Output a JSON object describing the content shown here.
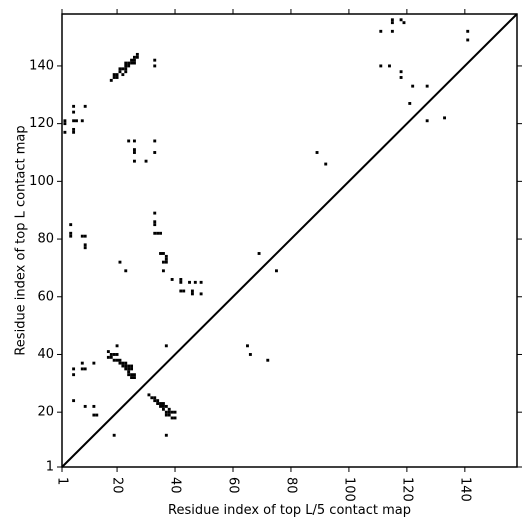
{
  "chart_data": {
    "type": "scatter",
    "xlabel": "Residue index of top L/5 contact map",
    "ylabel": "Residue index of top L contact map",
    "xlim": [
      1,
      158
    ],
    "ylim": [
      1,
      158
    ],
    "x_ticks": [
      1,
      20,
      40,
      60,
      80,
      100,
      120,
      140
    ],
    "y_ticks": [
      1,
      20,
      40,
      60,
      80,
      100,
      120,
      140
    ],
    "x_tick_labels": [
      "1",
      "20",
      "40",
      "60",
      "80",
      "100",
      "120",
      "140"
    ],
    "y_tick_labels": [
      "1",
      "20",
      "40",
      "60",
      "80",
      "100",
      "120",
      "140"
    ],
    "diagonal": true,
    "grid": false,
    "marker_color": "#000000",
    "series": [
      {
        "values_xy": [
          [
            2,
            121
          ],
          [
            2,
            120
          ],
          [
            2,
            117
          ],
          [
            5,
            126
          ],
          [
            5,
            124
          ],
          [
            5,
            121
          ],
          [
            5,
            118
          ],
          [
            5,
            117
          ],
          [
            6,
            121
          ],
          [
            8,
            121
          ],
          [
            9,
            126
          ],
          [
            4,
            85
          ],
          [
            4,
            82
          ],
          [
            4,
            81
          ],
          [
            8,
            81
          ],
          [
            9,
            81
          ],
          [
            9,
            78
          ],
          [
            9,
            77
          ],
          [
            24,
            114
          ],
          [
            26,
            114
          ],
          [
            26,
            111
          ],
          [
            26,
            110
          ],
          [
            26,
            107
          ],
          [
            30,
            107
          ],
          [
            33,
            114
          ],
          [
            33,
            110
          ],
          [
            33,
            142
          ],
          [
            33,
            140
          ],
          [
            18,
            135
          ],
          [
            19,
            137
          ],
          [
            19,
            136
          ],
          [
            20,
            137
          ],
          [
            20,
            136
          ],
          [
            21,
            139
          ],
          [
            21,
            138
          ],
          [
            22,
            139
          ],
          [
            22,
            137
          ],
          [
            23,
            141
          ],
          [
            23,
            140
          ],
          [
            23,
            139
          ],
          [
            23,
            138
          ],
          [
            24,
            141
          ],
          [
            24,
            140
          ],
          [
            25,
            142
          ],
          [
            25,
            141
          ],
          [
            26,
            143
          ],
          [
            26,
            142
          ],
          [
            26,
            141
          ],
          [
            27,
            144
          ],
          [
            27,
            143
          ],
          [
            33,
            89
          ],
          [
            33,
            86
          ],
          [
            33,
            85
          ],
          [
            33,
            82
          ],
          [
            34,
            82
          ],
          [
            35,
            82
          ],
          [
            35,
            75
          ],
          [
            36,
            75
          ],
          [
            36,
            72
          ],
          [
            37,
            74
          ],
          [
            37,
            73
          ],
          [
            37,
            72
          ],
          [
            36,
            69
          ],
          [
            39,
            66
          ],
          [
            42,
            66
          ],
          [
            42,
            65
          ],
          [
            42,
            62
          ],
          [
            43,
            62
          ],
          [
            45,
            65
          ],
          [
            46,
            62
          ],
          [
            46,
            61
          ],
          [
            47,
            65
          ],
          [
            49,
            65
          ],
          [
            49,
            61
          ],
          [
            21,
            72
          ],
          [
            23,
            69
          ],
          [
            69,
            75
          ],
          [
            75,
            69
          ],
          [
            89,
            110
          ],
          [
            92,
            106
          ],
          [
            111,
            152
          ],
          [
            111,
            140
          ],
          [
            114,
            140
          ],
          [
            115,
            156
          ],
          [
            115,
            155
          ],
          [
            115,
            152
          ],
          [
            118,
            156
          ],
          [
            118,
            138
          ],
          [
            118,
            136
          ],
          [
            119,
            155
          ],
          [
            121,
            127
          ],
          [
            122,
            133
          ],
          [
            127,
            133
          ],
          [
            127,
            121
          ],
          [
            133,
            122
          ],
          [
            141,
            152
          ],
          [
            141,
            149
          ],
          [
            17,
            41
          ],
          [
            17,
            39
          ],
          [
            18,
            40
          ],
          [
            18,
            39
          ],
          [
            19,
            40
          ],
          [
            19,
            38
          ],
          [
            20,
            43
          ],
          [
            20,
            40
          ],
          [
            20,
            38
          ],
          [
            21,
            38
          ],
          [
            21,
            37
          ],
          [
            22,
            37
          ],
          [
            22,
            36
          ],
          [
            23,
            37
          ],
          [
            23,
            36
          ],
          [
            23,
            35
          ],
          [
            24,
            36
          ],
          [
            24,
            35
          ],
          [
            24,
            34
          ],
          [
            24,
            33
          ],
          [
            25,
            36
          ],
          [
            25,
            35
          ],
          [
            25,
            33
          ],
          [
            25,
            32
          ],
          [
            26,
            33
          ],
          [
            26,
            32
          ],
          [
            5,
            35
          ],
          [
            5,
            33
          ],
          [
            5,
            24
          ],
          [
            8,
            37
          ],
          [
            8,
            35
          ],
          [
            9,
            35
          ],
          [
            12,
            37
          ],
          [
            9,
            22
          ],
          [
            12,
            22
          ],
          [
            12,
            19
          ],
          [
            13,
            19
          ],
          [
            19,
            12
          ],
          [
            31,
            26
          ],
          [
            32,
            25
          ],
          [
            33,
            25
          ],
          [
            33,
            24
          ],
          [
            34,
            24
          ],
          [
            34,
            23
          ],
          [
            35,
            23
          ],
          [
            35,
            22
          ],
          [
            36,
            23
          ],
          [
            36,
            22
          ],
          [
            36,
            21
          ],
          [
            37,
            22
          ],
          [
            37,
            20
          ],
          [
            37,
            19
          ],
          [
            38,
            21
          ],
          [
            38,
            20
          ],
          [
            38,
            19
          ],
          [
            39,
            20
          ],
          [
            39,
            18
          ],
          [
            40,
            20
          ],
          [
            40,
            18
          ],
          [
            37,
            43
          ],
          [
            37,
            12
          ],
          [
            65,
            43
          ],
          [
            66,
            40
          ],
          [
            72,
            38
          ]
        ]
      }
    ]
  }
}
